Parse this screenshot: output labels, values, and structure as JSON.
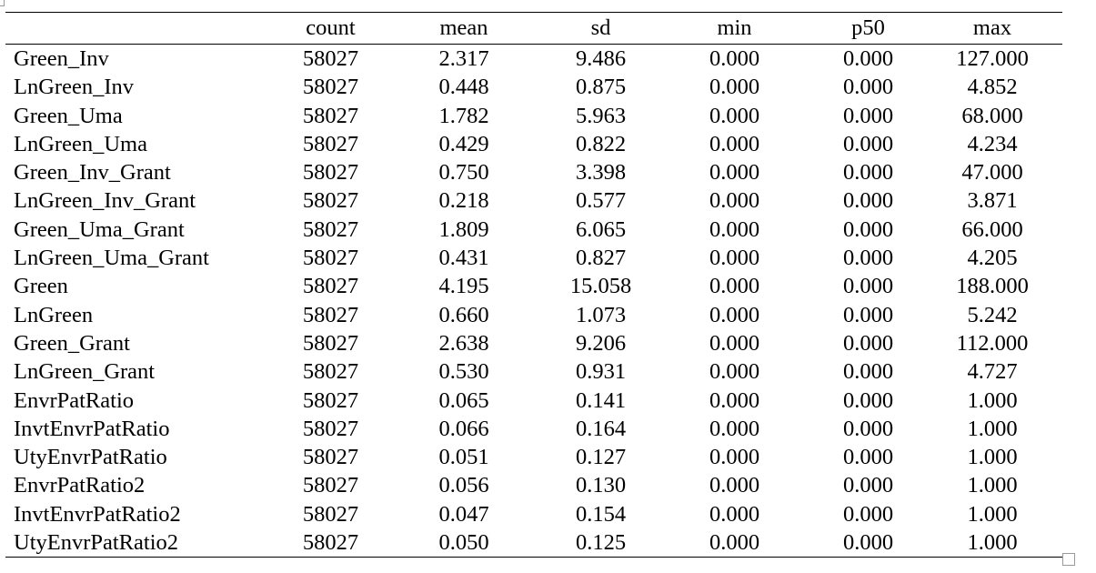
{
  "table": {
    "columns": [
      "",
      "count",
      "mean",
      "sd",
      "min",
      "p50",
      "max"
    ],
    "rows": [
      {
        "name": "Green_Inv",
        "count": "58027",
        "mean": "2.317",
        "sd": "9.486",
        "min": "0.000",
        "p50": "0.000",
        "max": "127.000"
      },
      {
        "name": "LnGreen_Inv",
        "count": "58027",
        "mean": "0.448",
        "sd": "0.875",
        "min": "0.000",
        "p50": "0.000",
        "max": "4.852"
      },
      {
        "name": "Green_Uma",
        "count": "58027",
        "mean": "1.782",
        "sd": "5.963",
        "min": "0.000",
        "p50": "0.000",
        "max": "68.000"
      },
      {
        "name": "LnGreen_Uma",
        "count": "58027",
        "mean": "0.429",
        "sd": "0.822",
        "min": "0.000",
        "p50": "0.000",
        "max": "4.234"
      },
      {
        "name": "Green_Inv_Grant",
        "count": "58027",
        "mean": "0.750",
        "sd": "3.398",
        "min": "0.000",
        "p50": "0.000",
        "max": "47.000"
      },
      {
        "name": "LnGreen_Inv_Grant",
        "count": "58027",
        "mean": "0.218",
        "sd": "0.577",
        "min": "0.000",
        "p50": "0.000",
        "max": "3.871"
      },
      {
        "name": "Green_Uma_Grant",
        "count": "58027",
        "mean": "1.809",
        "sd": "6.065",
        "min": "0.000",
        "p50": "0.000",
        "max": "66.000"
      },
      {
        "name": "LnGreen_Uma_Grant",
        "count": "58027",
        "mean": "0.431",
        "sd": "0.827",
        "min": "0.000",
        "p50": "0.000",
        "max": "4.205"
      },
      {
        "name": "Green",
        "count": "58027",
        "mean": "4.195",
        "sd": "15.058",
        "min": "0.000",
        "p50": "0.000",
        "max": "188.000"
      },
      {
        "name": "LnGreen",
        "count": "58027",
        "mean": "0.660",
        "sd": "1.073",
        "min": "0.000",
        "p50": "0.000",
        "max": "5.242"
      },
      {
        "name": "Green_Grant",
        "count": "58027",
        "mean": "2.638",
        "sd": "9.206",
        "min": "0.000",
        "p50": "0.000",
        "max": "112.000"
      },
      {
        "name": "LnGreen_Grant",
        "count": "58027",
        "mean": "0.530",
        "sd": "0.931",
        "min": "0.000",
        "p50": "0.000",
        "max": "4.727"
      },
      {
        "name": "EnvrPatRatio",
        "count": "58027",
        "mean": "0.065",
        "sd": "0.141",
        "min": "0.000",
        "p50": "0.000",
        "max": "1.000"
      },
      {
        "name": "InvtEnvrPatRatio",
        "count": "58027",
        "mean": "0.066",
        "sd": "0.164",
        "min": "0.000",
        "p50": "0.000",
        "max": "1.000"
      },
      {
        "name": "UtyEnvrPatRatio",
        "count": "58027",
        "mean": "0.051",
        "sd": "0.127",
        "min": "0.000",
        "p50": "0.000",
        "max": "1.000"
      },
      {
        "name": "EnvrPatRatio2",
        "count": "58027",
        "mean": "0.056",
        "sd": "0.130",
        "min": "0.000",
        "p50": "0.000",
        "max": "1.000"
      },
      {
        "name": "InvtEnvrPatRatio2",
        "count": "58027",
        "mean": "0.047",
        "sd": "0.154",
        "min": "0.000",
        "p50": "0.000",
        "max": "1.000"
      },
      {
        "name": "UtyEnvrPatRatio2",
        "count": "58027",
        "mean": "0.050",
        "sd": "0.125",
        "min": "0.000",
        "p50": "0.000",
        "max": "1.000"
      }
    ]
  }
}
